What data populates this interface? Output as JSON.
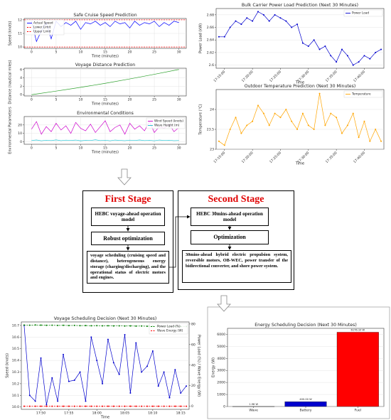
{
  "chart_data": [
    {
      "type": "line",
      "title": "Safe Cruise Speed Prediction",
      "xlabel": "Time (minutes)",
      "ylabel": "Speed (knots)",
      "x": [
        0,
        1,
        2,
        3,
        4,
        5,
        6,
        7,
        8,
        9,
        10,
        11,
        12,
        13,
        14,
        15,
        16,
        17,
        18,
        19,
        20,
        21,
        22,
        23,
        24,
        25,
        26,
        27,
        28,
        29,
        30
      ],
      "series": [
        {
          "name": "Actual Speed",
          "color": "#0000ff",
          "values": [
            11.9,
            10.4,
            11.2,
            11.8,
            10.6,
            11.9,
            11.5,
            11.8,
            11.6,
            11.9,
            11.3,
            11.8,
            11.7,
            11.9,
            11.6,
            11.8,
            11.5,
            11.9,
            11.7,
            11.8,
            11.4,
            11.9,
            11.6,
            11.8,
            11.7,
            11.9,
            11.5,
            11.8,
            11.6,
            11.9,
            11.8
          ]
        }
      ],
      "hlines": [
        {
          "name": "Lower Limit",
          "value": 10,
          "color": "#ff0000",
          "linestyle": "dashed"
        },
        {
          "name": "Upper Limit",
          "value": 12,
          "color": "#ff0000",
          "linestyle": "dashed"
        }
      ],
      "xlim": [
        -1.5,
        31.5
      ],
      "xticks": [
        0,
        5,
        10,
        15,
        20,
        25,
        30
      ],
      "ylim": [
        9.9,
        12.1
      ],
      "yticks": [
        10,
        11,
        12
      ],
      "grid": true,
      "legend": "upper left"
    },
    {
      "type": "line",
      "title": "Voyage Distance Prediction",
      "xlabel": "Time (minutes)",
      "ylabel": "Distance (nautical miles)",
      "x": [
        0,
        5,
        10,
        15,
        20,
        25,
        30
      ],
      "series": [
        {
          "color": "#2ca02c",
          "values": [
            0,
            0.85,
            1.75,
            2.7,
            3.75,
            4.85,
            6.0
          ]
        }
      ],
      "xlim": [
        -1.5,
        31.5
      ],
      "xticks": [
        0,
        5,
        10,
        15,
        20,
        25,
        30
      ],
      "ylim": [
        -0.3,
        6.3
      ],
      "yticks": [
        0,
        2,
        4,
        6
      ],
      "grid": true
    },
    {
      "type": "line",
      "title": "Environmental Conditions",
      "xlabel": "Time (minutes)",
      "ylabel": "Environmental Parameters",
      "x": [
        0,
        1,
        2,
        3,
        4,
        5,
        6,
        7,
        8,
        9,
        10,
        11,
        12,
        13,
        14,
        15,
        16,
        17,
        18,
        19,
        20,
        21,
        22,
        23,
        24,
        25,
        26,
        27,
        28,
        29,
        30
      ],
      "series": [
        {
          "name": "Wind Speed (knots)",
          "color": "#cc00cc",
          "values": [
            15,
            24,
            9,
            18,
            12,
            22,
            14,
            19,
            10,
            23,
            16,
            13,
            21,
            11,
            18,
            25,
            12,
            17,
            20,
            9,
            22,
            15,
            19,
            13,
            24,
            11,
            18,
            16,
            21,
            12,
            17
          ]
        },
        {
          "name": "Wave Height (m)",
          "color": "#17becf",
          "values": [
            1.5,
            2.1,
            1.2,
            1.8,
            1.4,
            2.2,
            1.3,
            1.9,
            1.6,
            2.0,
            1.1,
            1.7,
            1.5,
            2.3,
            1.4,
            1.8,
            1.2,
            2.0,
            1.6,
            1.3,
            1.9,
            1.5,
            2.1,
            1.4,
            1.7,
            1.2,
            2.0,
            1.6,
            1.8,
            1.3,
            1.5
          ]
        }
      ],
      "xlim": [
        -1.5,
        31.5
      ],
      "xticks": [
        0,
        5,
        10,
        15,
        20,
        25,
        30
      ],
      "ylim": [
        -3,
        30
      ],
      "yticks": [
        0,
        10,
        20
      ],
      "grid": true,
      "legend": "upper right"
    },
    {
      "type": "line",
      "title": "Bulk Carrier Power Load Prediction (Next 30 Minutes)",
      "xlabel": "Time",
      "ylabel": "Power Load (kW)",
      "categories": [
        null,
        "17:15:00",
        null,
        null,
        null,
        null,
        "17:20:00",
        null,
        null,
        null,
        null,
        "17:25:00",
        null,
        null,
        null,
        null,
        "17:30:00",
        null,
        null,
        null,
        null,
        "17:35:00",
        null,
        null,
        null,
        null,
        "17:40:00",
        null,
        null,
        null
      ],
      "series": [
        {
          "name": "Power Load",
          "color": "#0000cd",
          "marker": "o",
          "values": [
            2.645,
            2.645,
            2.66,
            2.67,
            2.665,
            2.675,
            2.67,
            2.685,
            2.68,
            2.67,
            2.68,
            2.675,
            2.67,
            2.66,
            2.665,
            2.635,
            2.63,
            2.64,
            2.625,
            2.63,
            2.615,
            2.605,
            2.625,
            2.615,
            2.6,
            2.605,
            2.615,
            2.61,
            2.62,
            2.625
          ]
        }
      ],
      "ylim": [
        2.595,
        2.69
      ],
      "yticks": [
        2.6,
        2.62,
        2.64,
        2.66,
        2.68
      ],
      "grid": true,
      "legend": "upper right"
    },
    {
      "type": "line",
      "title": "Outdoor Temperature Prediction (Next 30 Minutes)",
      "xlabel": "Time",
      "ylabel": "Temperature (°C)",
      "categories": [
        null,
        "17:15:00",
        null,
        null,
        null,
        null,
        "17:20:00",
        null,
        null,
        null,
        null,
        "17:25:00",
        null,
        null,
        null,
        null,
        "17:30:00",
        null,
        null,
        null,
        null,
        "17:35:00",
        null,
        null,
        null,
        null,
        "17:40:00",
        null,
        null,
        null
      ],
      "series": [
        {
          "name": "Temperature",
          "color": "#ffa500",
          "marker": "o",
          "values": [
            23.2,
            23.1,
            23.5,
            23.8,
            23.4,
            23.6,
            23.7,
            24.1,
            23.9,
            23.6,
            23.9,
            23.8,
            24.0,
            23.7,
            23.5,
            23.9,
            23.6,
            23.5,
            24.4,
            23.6,
            23.9,
            23.8,
            23.4,
            23.6,
            23.9,
            23.3,
            23.7,
            23.2,
            23.5,
            23.2
          ]
        }
      ],
      "ylim": [
        23.0,
        24.5
      ],
      "yticks": [
        23,
        23.5,
        24
      ],
      "grid": true,
      "legend": "upper right"
    },
    {
      "type": "line",
      "title": "Voyage Scheduling Decision (Next 30 Minutes)",
      "xlabel": "Time",
      "ylabel": "Speed (knots)",
      "y2label": "Power Load (%) / Wave Energy (W)",
      "categories": [
        null,
        null,
        null,
        "17:50",
        null,
        null,
        null,
        null,
        "17:55",
        null,
        null,
        null,
        null,
        "18:00",
        null,
        null,
        null,
        null,
        "18:05",
        null,
        null,
        null,
        null,
        "18:10",
        null,
        null,
        null,
        null,
        "18:15",
        null
      ],
      "series": [
        {
          "color": "#0000cd",
          "marker": "o",
          "values": [
            10.7,
            10.1,
            10.05,
            10.42,
            10.02,
            10.25,
            10.05,
            10.45,
            10.22,
            10.23,
            10.3,
            10.05,
            10.6,
            10.4,
            10.2,
            10.58,
            10.38,
            10.28,
            10.62,
            10.12,
            10.55,
            10.3,
            10.35,
            10.48,
            10.18,
            10.3,
            10.08,
            10.32,
            10.12,
            10.18
          ]
        },
        {
          "name": "Power Load (%)",
          "color": "#008000",
          "marker": "o",
          "linestyle": "dashed",
          "axis": "y2",
          "values": [
            79,
            78.8,
            79.1,
            78.9,
            78.7,
            78.8,
            78.6,
            78.7,
            78.5,
            78.6,
            78.4,
            78.5,
            78.3,
            78.4,
            78.2,
            78.3,
            78.1,
            78.2,
            78.0,
            78.1,
            77.9,
            78.0,
            77.8,
            77.9,
            77.7,
            77.8,
            77.6,
            77.7,
            77.5,
            77.6
          ]
        },
        {
          "name": "Wave Energy (W)",
          "color": "#ff0000",
          "marker": "o",
          "linestyle": "dashed",
          "axis": "y2",
          "values": [
            0,
            0,
            0,
            0,
            0,
            0,
            0,
            0,
            0,
            0,
            0,
            0,
            0,
            0,
            0,
            0,
            0,
            0,
            0,
            0,
            0,
            0,
            0,
            0,
            0,
            0,
            0,
            0,
            0,
            0
          ]
        }
      ],
      "ylim": [
        9.98,
        10.73
      ],
      "yticks": [
        {
          "value": 10,
          "label": "10.0"
        },
        10.1,
        10.2,
        10.3,
        10.4,
        10.5,
        10.6,
        10.7
      ],
      "y2lim": [
        -3,
        82
      ],
      "y2ticks": [
        0,
        20,
        40,
        60,
        80
      ],
      "grid": true,
      "legend": "upper right"
    },
    {
      "type": "bar",
      "title": "Energy Scheduling Decision (Next 30 Minutes)",
      "ylabel": "Energy (W)",
      "categories": [
        "Wave",
        "Battery",
        "Fuel"
      ],
      "values": [
        1.98,
        400,
        6176.1
      ],
      "value_labels": [
        "1.98 W",
        "400.00 W",
        "6176.10 W"
      ],
      "colors": [
        "#808080",
        "#0000cd",
        "#ff0000"
      ],
      "ylim": [
        0,
        6500
      ],
      "yticks": [
        0,
        1000,
        2000,
        3000,
        4000,
        5000,
        6000
      ],
      "grid": true
    }
  ],
  "diagram": {
    "first_stage": {
      "title": "First Stage",
      "model": "HEBC voyage-ahead operation model",
      "method": "Robust optimization",
      "output": "voyage scheduling (cruising speed and distance), heterogeneous energy storage (charging/discharging), and the operational status of electric motors and engines."
    },
    "second_stage": {
      "title": "Second Stage",
      "model": "HEBC 30mins-ahead operation model",
      "method": "Optimization",
      "output": "30mins-ahead hybrid electric propulsion system, reversible motors, OB-WEC, power transfer of the bidirectional converter, and shore power system."
    }
  }
}
